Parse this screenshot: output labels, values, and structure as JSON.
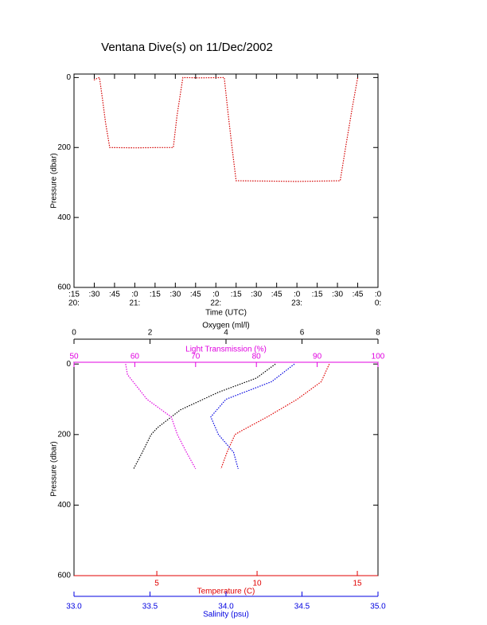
{
  "chart_data": [
    {
      "type": "line",
      "title": "Ventana Dive(s) on 11/Dec/2002",
      "x_label": "Time (UTC)",
      "y_label": "Pressure (dbar)",
      "xlim": [
        20.25,
        24
      ],
      "ylim": [
        600,
        -10
      ],
      "xticks": [
        {
          "value": 20.25,
          "label": ":15"
        },
        {
          "value": 20.5,
          "label": ":30"
        },
        {
          "value": 20.75,
          "label": ":45"
        },
        {
          "value": 21,
          "label": ":0"
        },
        {
          "value": 21.25,
          "label": ":15"
        },
        {
          "value": 21.5,
          "label": ":30"
        },
        {
          "value": 21.75,
          "label": ":45"
        },
        {
          "value": 22,
          "label": ":0"
        },
        {
          "value": 22.25,
          "label": ":15"
        },
        {
          "value": 22.5,
          "label": ":30"
        },
        {
          "value": 22.75,
          "label": ":45"
        },
        {
          "value": 23,
          "label": ":0"
        },
        {
          "value": 23.25,
          "label": ":15"
        },
        {
          "value": 23.5,
          "label": ":30"
        },
        {
          "value": 23.75,
          "label": ":45"
        },
        {
          "value": 24,
          "label": ":0"
        }
      ],
      "xticks_hour": [
        {
          "value": 20.25,
          "label": "20:"
        },
        {
          "value": 21,
          "label": "21:"
        },
        {
          "value": 22,
          "label": "22:"
        },
        {
          "value": 23,
          "label": "23:"
        },
        {
          "value": 24,
          "label": "0:"
        }
      ],
      "yticks": [
        0,
        200,
        400,
        600
      ],
      "series": [
        {
          "color": "#d40000",
          "x": [
            20.495,
            20.53,
            20.564,
            20.6,
            20.64,
            20.691,
            21.0,
            21.3,
            21.475,
            21.52,
            21.593,
            21.8,
            22.103,
            22.15,
            22.2,
            22.25,
            22.6,
            23.0,
            23.3,
            23.534,
            23.6,
            23.68,
            23.75
          ],
          "values": [
            7,
            3,
            0,
            60,
            130,
            200,
            201,
            200,
            200,
            110,
            0,
            1,
            0,
            100,
            200,
            295,
            296,
            297,
            296,
            295,
            200,
            90,
            0
          ]
        }
      ]
    },
    {
      "type": "line",
      "y_label": "Pressure (dbar)",
      "ylim": [
        600,
        -5
      ],
      "yticks": [
        0,
        200,
        400,
        600
      ],
      "x_axes": [
        {
          "label": "Oxygen (ml/l)",
          "color": "#000000",
          "side": "top-outer",
          "xlim": [
            0,
            8
          ],
          "xticks": [
            0,
            2,
            4,
            6,
            8
          ]
        },
        {
          "label": "Light Transmission (%)",
          "color": "#e000e0",
          "side": "top",
          "xlim": [
            50,
            100
          ],
          "xticks": [
            50,
            60,
            70,
            80,
            90,
            100
          ]
        },
        {
          "label": "Temperature (C)",
          "color": "#e00000",
          "side": "bottom",
          "xlim": [
            0.87,
            16.03
          ],
          "xticks": [
            5,
            10,
            15
          ]
        },
        {
          "label": "Salinity (psu)",
          "color": "#0000e0",
          "side": "bottom-outer",
          "xlim": [
            33,
            35
          ],
          "xticks": [
            {
              "value": 33,
              "label": "33.0"
            },
            {
              "value": 33.5,
              "label": "33.5"
            },
            {
              "value": 34,
              "label": "34.0"
            },
            {
              "value": 34.5,
              "label": "34.5"
            },
            {
              "value": 35,
              "label": "35.0"
            }
          ]
        }
      ],
      "series": [
        {
          "axis": 0,
          "color": "#000000",
          "x": [
            5.3,
            4.8,
            3.8,
            2.8,
            2.2,
            2.03,
            1.8,
            1.57
          ],
          "values": [
            0,
            40,
            80,
            130,
            180,
            200,
            250,
            297
          ]
        },
        {
          "axis": 1,
          "color": "#e000e0",
          "x": [
            58.5,
            58.8,
            62,
            66,
            67,
            68.5,
            70
          ],
          "values": [
            0,
            30,
            100,
            150,
            200,
            250,
            297
          ]
        },
        {
          "axis": 2,
          "color": "#e00000",
          "x": [
            13.6,
            13.2,
            12,
            10.5,
            9.2,
            8.9,
            8.5,
            8.2
          ],
          "values": [
            0,
            50,
            100,
            150,
            190,
            200,
            250,
            297
          ]
        },
        {
          "axis": 3,
          "color": "#0000e0",
          "x": [
            34.45,
            34.3,
            34.0,
            33.9,
            33.95,
            34.05,
            34.08
          ],
          "values": [
            0,
            50,
            100,
            150,
            200,
            250,
            297
          ]
        }
      ]
    }
  ]
}
